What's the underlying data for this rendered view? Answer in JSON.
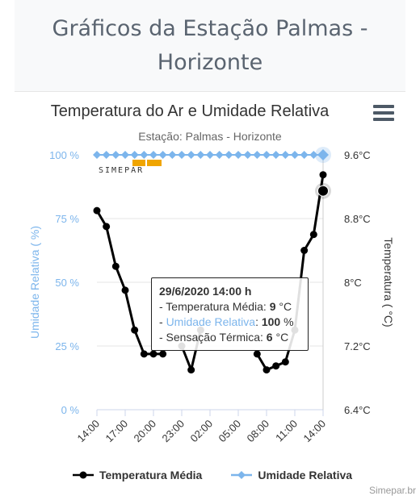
{
  "header": {
    "title": "Gráficos da Estação Palmas - Horizonte"
  },
  "chart_data": {
    "type": "line",
    "title": "Temperatura do Ar e Umidade Relativa",
    "subtitle": "Estação: Palmas - Horizonte",
    "x_categories": [
      "14:00",
      "17:00",
      "20:00",
      "23:00",
      "02:00",
      "05:00",
      "08:00",
      "11:00",
      "14:00"
    ],
    "y_left": {
      "label": "Umidade Relativa ( %)",
      "ticks": [
        "0 %",
        "25 %",
        "50 %",
        "75 %",
        "100 %"
      ],
      "range": [
        0,
        100
      ]
    },
    "y_right": {
      "label": "Temperatura ( °C)",
      "ticks": [
        "6.4°C",
        "7.2°C",
        "8°C",
        "8.8°C",
        "9.6°C"
      ],
      "range": [
        6.4,
        9.6
      ]
    },
    "grid": true,
    "legend_position": "bottom-center",
    "series": [
      {
        "name": "Temperatura Média",
        "color": "#000000",
        "axis": "right",
        "x_hours": [
          0,
          1,
          2,
          3,
          4,
          5,
          6,
          7,
          8,
          9,
          10,
          11,
          12,
          13,
          14,
          15,
          16,
          17,
          18,
          19,
          20,
          21,
          22,
          23,
          24
        ],
        "values": [
          8.9,
          8.7,
          8.2,
          7.9,
          7.4,
          7.1,
          7.1,
          7.1,
          null,
          7.2,
          6.9,
          7.4,
          null,
          null,
          null,
          null,
          null,
          7.1,
          6.9,
          6.95,
          7.0,
          7.4,
          8.4,
          8.6,
          9.35
        ]
      },
      {
        "name": "Umidade Relativa",
        "color": "#7cb5ec",
        "axis": "left",
        "x_hours": [
          0,
          1,
          2,
          3,
          4,
          5,
          6,
          7,
          8,
          9,
          10,
          11,
          12,
          13,
          14,
          15,
          16,
          17,
          18,
          19,
          20,
          21,
          22,
          23,
          24
        ],
        "values": [
          100,
          100,
          100,
          100,
          100,
          100,
          100,
          100,
          100,
          100,
          100,
          100,
          100,
          100,
          100,
          100,
          100,
          100,
          100,
          100,
          100,
          100,
          100,
          100,
          100
        ]
      }
    ],
    "highlight": {
      "x_hour": 24
    }
  },
  "tooltip": {
    "title": "29/6/2020 14:00 h",
    "temp_label": "- Temperatura Média: ",
    "temp_value": "9",
    "temp_unit": " °C",
    "hum_label": "Umidade Relativa",
    "hum_value": "100",
    "hum_unit": " %",
    "feel_label": "- Sensação Térmica: ",
    "feel_value": "6",
    "feel_unit": " °C"
  },
  "legend": {
    "temp": "Temperatura Média",
    "hum": "Umidade Relativa"
  },
  "credits": "Simepar.br",
  "logo": {
    "text": "SIMEPAR"
  },
  "icons": {
    "menu": "hamburger-menu-icon"
  }
}
